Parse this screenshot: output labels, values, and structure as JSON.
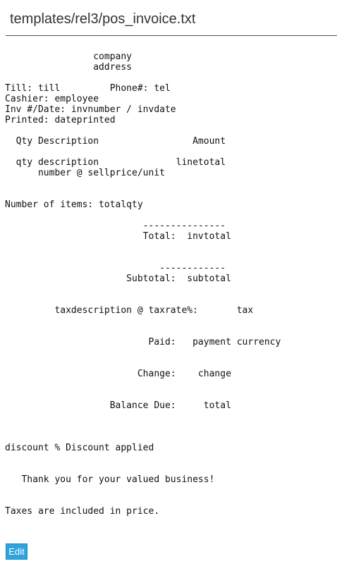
{
  "page": {
    "title": "templates/rel3/pos_invoice.txt"
  },
  "template": {
    "lines": [
      "",
      "                company",
      "                address",
      "",
      "Till: till         Phone#: tel",
      "Cashier: employee",
      "Inv #/Date: invnumber / invdate",
      "Printed: dateprinted",
      "",
      "  Qty Description                 Amount",
      "",
      "  qty description              linetotal",
      "      number @ sellprice/unit",
      "",
      "",
      "Number of items: totalqty",
      "",
      "                         ---------------",
      "                         Total:  invtotal",
      "",
      "",
      "                            ------------",
      "                      Subtotal:  subtotal",
      "",
      "",
      "         taxdescription @ taxrate%:       tax",
      "",
      "",
      "                          Paid:   payment currency",
      "",
      "",
      "                        Change:    change",
      "",
      "",
      "                   Balance Due:     total",
      "",
      "",
      "",
      "discount % Discount applied",
      "",
      "",
      "   Thank you for your valued business!",
      "",
      "",
      "Taxes are included in price."
    ]
  },
  "actions": {
    "edit_label": "Edit"
  },
  "colors": {
    "edit_button_bg": "#2fa4dc",
    "header_rule": "#555555"
  }
}
